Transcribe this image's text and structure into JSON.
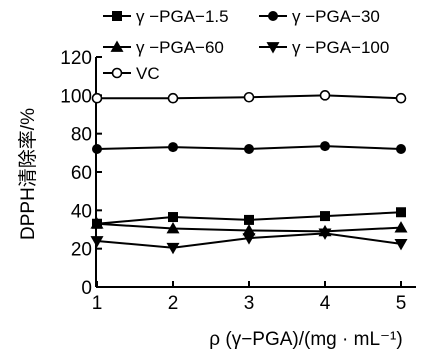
{
  "chart_data": {
    "type": "line",
    "title": "",
    "xlabel": "ρ (γ−PGA)/(mg · mL⁻¹)",
    "ylabel": "DPPH清除率/%",
    "x": [
      1,
      2,
      3,
      4,
      5
    ],
    "xlim": [
      1,
      5.4
    ],
    "ylim": [
      0,
      120
    ],
    "yticks": [
      0,
      20,
      40,
      60,
      80,
      100,
      120
    ],
    "xticks": [
      1,
      2,
      3,
      4,
      5
    ],
    "grid": false,
    "legend_position": "top",
    "series": [
      {
        "name": "γ −PGA−1.5",
        "marker": "square",
        "values": [
          33,
          36.5,
          35,
          37,
          39
        ]
      },
      {
        "name": "γ −PGA−30",
        "marker": "circle",
        "values": [
          72,
          73,
          72,
          73.5,
          72
        ]
      },
      {
        "name": "γ −PGA−60",
        "marker": "triangle-up",
        "values": [
          33,
          30.5,
          29.5,
          29,
          31
        ]
      },
      {
        "name": "γ −PGA−100",
        "marker": "triangle-down",
        "values": [
          24,
          20.5,
          25.5,
          28,
          22.5
        ]
      },
      {
        "name": "VC",
        "marker": "open-circle",
        "values": [
          98.5,
          98.5,
          99,
          100,
          98.5
        ]
      }
    ],
    "colors": {
      "line": "#000000",
      "background": "#ffffff"
    }
  }
}
